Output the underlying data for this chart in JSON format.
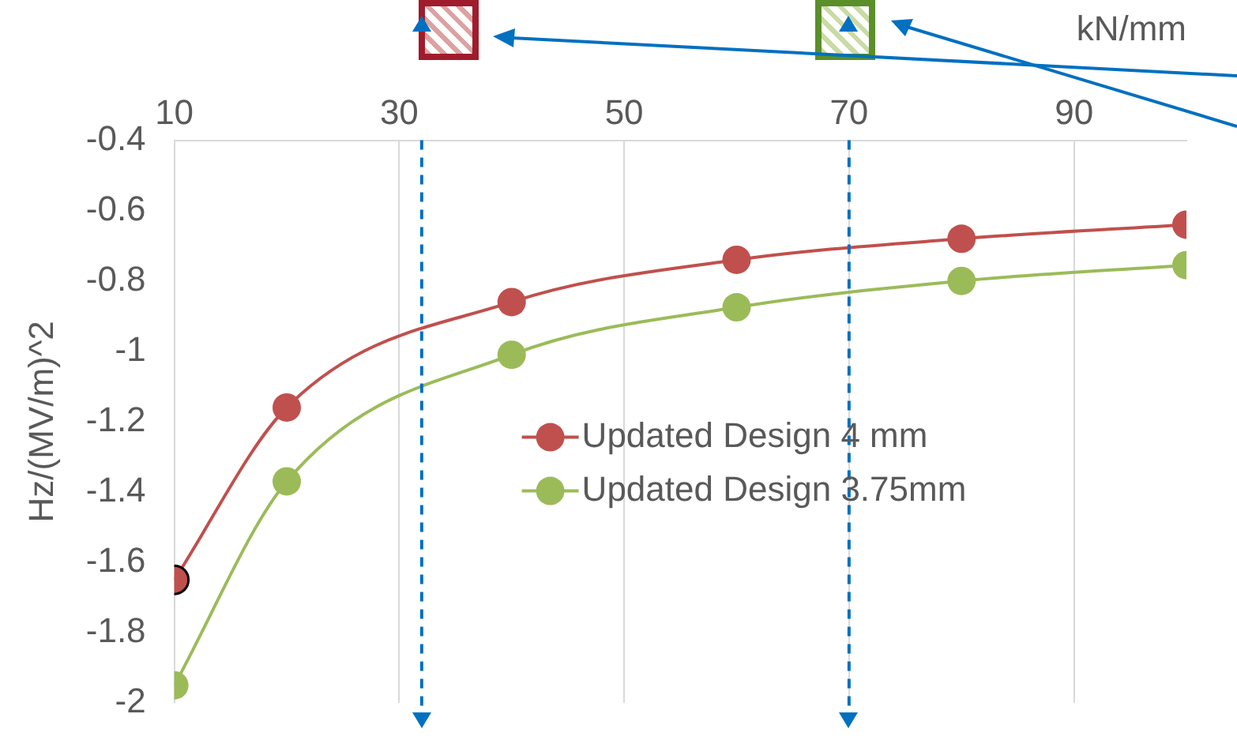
{
  "chart_data": {
    "type": "line",
    "xlabel": "kN/mm",
    "ylabel": "Hz/(MV/m)^2",
    "x": [
      10,
      20,
      40,
      60,
      80,
      100
    ],
    "series": [
      {
        "name": "Updated Design 4 mm",
        "color": "#c0504d",
        "values": [
          -1.65,
          -1.16,
          -0.86,
          -0.74,
          -0.68,
          -0.64
        ]
      },
      {
        "name": "Updated Design 3.75mm",
        "color": "#9bbb59",
        "values": [
          -1.95,
          -1.37,
          -1.01,
          -0.875,
          -0.8,
          -0.755
        ]
      }
    ],
    "xlim": [
      10,
      100
    ],
    "xticks": [
      10,
      30,
      50,
      70,
      90
    ],
    "ylim": [
      -2,
      -0.4
    ],
    "yticks": [
      -2,
      -1.8,
      -1.6,
      -1.4,
      -1.2,
      -1,
      -0.8,
      -0.6,
      -0.4
    ],
    "grid": "x",
    "legend": "center",
    "marker": "circle",
    "line_style": "solid",
    "ref_lines": [
      {
        "axis": "x",
        "value": 32,
        "color": "#0070c0",
        "line_style": "dashed"
      },
      {
        "axis": "x",
        "value": 70,
        "color": "#0070c0",
        "line_style": "dashed"
      }
    ]
  }
}
